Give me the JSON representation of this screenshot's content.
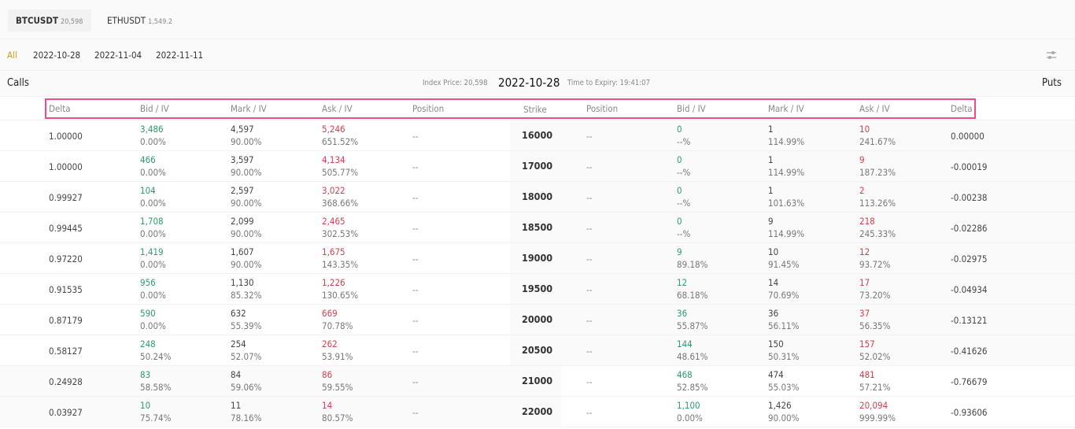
{
  "symbols": [
    {
      "name": "BTCUSDT",
      "price": "20,598",
      "active": true
    },
    {
      "name": "ETHUSDT",
      "price": "1,549.2",
      "active": false
    }
  ],
  "dates": [
    "All",
    "2022-10-28",
    "2022-11-04",
    "2022-11-11"
  ],
  "info": {
    "calls": "Calls",
    "puts": "Puts",
    "index_price": "Index Price: 20,598",
    "expiry": "2022-10-28",
    "time_to_expiry": "Time to Expiry: 19:41:07"
  },
  "headers": {
    "calls": [
      "Delta",
      "Bid / IV",
      "Mark / IV",
      "Ask / IV",
      "Position"
    ],
    "strike": "Strike",
    "puts": [
      "Position",
      "Bid / IV",
      "Mark / IV",
      "Ask / IV",
      "Delta"
    ]
  },
  "colors": {
    "bid": "#2a9d6b",
    "ask": "#d0404f",
    "accent": "#d4a017",
    "highlight_border": "#ef4b8b"
  },
  "rows": [
    {
      "strike": "16000",
      "call": {
        "delta": "1.00000",
        "bid": "3,486",
        "bid_iv": "0.00%",
        "mark": "4,597",
        "mark_iv": "90.00%",
        "ask": "5,246",
        "ask_iv": "651.52%",
        "position": "--"
      },
      "put": {
        "position": "--",
        "bid": "0",
        "bid_iv": "--%",
        "mark": "1",
        "mark_iv": "114.99%",
        "ask": "10",
        "ask_iv": "241.67%",
        "delta": "0.00000"
      }
    },
    {
      "strike": "17000",
      "call": {
        "delta": "1.00000",
        "bid": "466",
        "bid_iv": "0.00%",
        "mark": "3,597",
        "mark_iv": "90.00%",
        "ask": "4,134",
        "ask_iv": "505.77%",
        "position": "--"
      },
      "put": {
        "position": "--",
        "bid": "0",
        "bid_iv": "--%",
        "mark": "1",
        "mark_iv": "114.99%",
        "ask": "9",
        "ask_iv": "187.23%",
        "delta": "-0.00019"
      }
    },
    {
      "strike": "18000",
      "call": {
        "delta": "0.99927",
        "bid": "104",
        "bid_iv": "0.00%",
        "mark": "2,597",
        "mark_iv": "90.00%",
        "ask": "3,022",
        "ask_iv": "368.66%",
        "position": "--"
      },
      "put": {
        "position": "--",
        "bid": "0",
        "bid_iv": "--%",
        "mark": "1",
        "mark_iv": "101.63%",
        "ask": "2",
        "ask_iv": "113.26%",
        "delta": "-0.00238"
      }
    },
    {
      "strike": "18500",
      "call": {
        "delta": "0.99445",
        "bid": "1,708",
        "bid_iv": "0.00%",
        "mark": "2,099",
        "mark_iv": "90.00%",
        "ask": "2,465",
        "ask_iv": "302.53%",
        "position": "--"
      },
      "put": {
        "position": "--",
        "bid": "0",
        "bid_iv": "--%",
        "mark": "9",
        "mark_iv": "114.99%",
        "ask": "218",
        "ask_iv": "245.33%",
        "delta": "-0.02286"
      }
    },
    {
      "strike": "19000",
      "call": {
        "delta": "0.97220",
        "bid": "1,419",
        "bid_iv": "0.00%",
        "mark": "1,607",
        "mark_iv": "90.00%",
        "ask": "1,675",
        "ask_iv": "143.35%",
        "position": "--"
      },
      "put": {
        "position": "--",
        "bid": "9",
        "bid_iv": "89.18%",
        "mark": "10",
        "mark_iv": "91.45%",
        "ask": "12",
        "ask_iv": "93.72%",
        "delta": "-0.02975"
      }
    },
    {
      "strike": "19500",
      "call": {
        "delta": "0.91535",
        "bid": "956",
        "bid_iv": "0.00%",
        "mark": "1,130",
        "mark_iv": "85.32%",
        "ask": "1,226",
        "ask_iv": "130.65%",
        "position": "--"
      },
      "put": {
        "position": "--",
        "bid": "12",
        "bid_iv": "68.18%",
        "mark": "14",
        "mark_iv": "70.69%",
        "ask": "17",
        "ask_iv": "73.20%",
        "delta": "-0.04934"
      }
    },
    {
      "strike": "20000",
      "call": {
        "delta": "0.87179",
        "bid": "590",
        "bid_iv": "0.00%",
        "mark": "632",
        "mark_iv": "55.39%",
        "ask": "669",
        "ask_iv": "70.78%",
        "position": "--"
      },
      "put": {
        "position": "--",
        "bid": "36",
        "bid_iv": "55.87%",
        "mark": "36",
        "mark_iv": "56.11%",
        "ask": "37",
        "ask_iv": "56.35%",
        "delta": "-0.13121"
      }
    },
    {
      "strike": "20500",
      "call": {
        "delta": "0.58127",
        "bid": "248",
        "bid_iv": "50.24%",
        "mark": "254",
        "mark_iv": "52.07%",
        "ask": "262",
        "ask_iv": "53.91%",
        "position": "--"
      },
      "put": {
        "position": "--",
        "bid": "144",
        "bid_iv": "48.61%",
        "mark": "150",
        "mark_iv": "50.31%",
        "ask": "157",
        "ask_iv": "52.02%",
        "delta": "-0.41626"
      }
    },
    {
      "strike": "21000",
      "call": {
        "delta": "0.24928",
        "bid": "83",
        "bid_iv": "58.58%",
        "mark": "84",
        "mark_iv": "59.06%",
        "ask": "86",
        "ask_iv": "59.55%",
        "position": "--"
      },
      "put": {
        "position": "--",
        "bid": "468",
        "bid_iv": "52.85%",
        "mark": "474",
        "mark_iv": "55.03%",
        "ask": "481",
        "ask_iv": "57.21%",
        "delta": "-0.76679"
      }
    },
    {
      "strike": "22000",
      "call": {
        "delta": "0.03927",
        "bid": "10",
        "bid_iv": "75.74%",
        "mark": "11",
        "mark_iv": "78.16%",
        "ask": "14",
        "ask_iv": "80.57%",
        "position": "--"
      },
      "put": {
        "position": "--",
        "bid": "1,100",
        "bid_iv": "0.00%",
        "mark": "1,426",
        "mark_iv": "90.00%",
        "ask": "20,094",
        "ask_iv": "999.99%",
        "delta": "-0.93606"
      }
    }
  ]
}
